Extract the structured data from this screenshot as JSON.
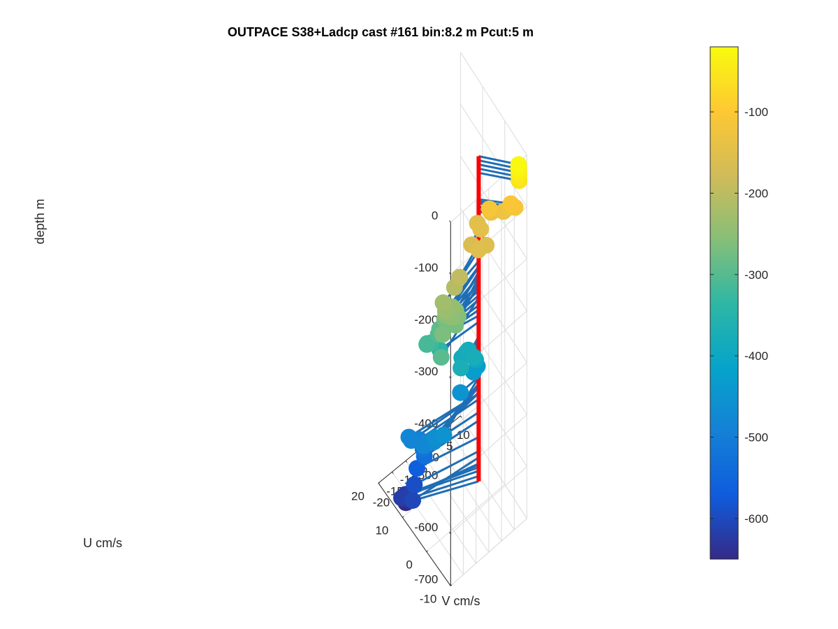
{
  "chart_data": {
    "type": "scatter",
    "title": "OUTPACE S38+Ladcp cast #161 bin:8.2 m  Pcut:5 m",
    "xlabel": "V cm/s",
    "ylabel": "U cm/s",
    "zlabel": "depth m",
    "xlim": [
      -20,
      10
    ],
    "ylim": [
      -10,
      20
    ],
    "zlim": [
      -700,
      0
    ],
    "x_ticks": [
      "-20",
      "-15",
      "-10",
      "-5",
      "0",
      "5",
      "10"
    ],
    "y_ticks": [
      "-10",
      "0",
      "10",
      "20"
    ],
    "z_ticks": [
      "0",
      "-100",
      "-200",
      "-300",
      "-400",
      "-500",
      "-600",
      "-700"
    ],
    "grid": true,
    "colorbar": {
      "range": [
        -650,
        -20
      ],
      "ticks": [
        "-100",
        "-200",
        "-300",
        "-400",
        "-500",
        "-600"
      ],
      "colormap": [
        "#352a87",
        "#0f5cdd",
        "#1481d6",
        "#06a4ca",
        "#2eb7a4",
        "#87bf77",
        "#d1bb59",
        "#fec832",
        "#f9fb0e"
      ]
    },
    "stick_color": "#1f6eb4",
    "marker_color_by": "depth",
    "origin_line_color": "#ff0000",
    "series": [
      {
        "points": [
          {
            "v": 8.5,
            "u": -8.0,
            "depth": -25
          },
          {
            "v": 8.5,
            "u": -8.0,
            "depth": -33
          },
          {
            "v": 8.6,
            "u": -8.0,
            "depth": -41
          },
          {
            "v": 8.6,
            "u": -8.0,
            "depth": -49
          },
          {
            "v": 8.7,
            "u": -8.0,
            "depth": -57
          },
          {
            "v": 7.2,
            "u": -6.0,
            "depth": -108
          },
          {
            "v": 8.0,
            "u": -7.0,
            "depth": -112
          },
          {
            "v": 1.5,
            "u": -3.0,
            "depth": -113
          },
          {
            "v": 7.5,
            "u": -5.0,
            "depth": -123
          },
          {
            "v": 6.0,
            "u": -4.0,
            "depth": -131
          },
          {
            "v": 3.0,
            "u": -2.0,
            "depth": -133
          },
          {
            "v": -1.0,
            "u": -2.0,
            "depth": -148
          },
          {
            "v": -0.5,
            "u": 0.0,
            "depth": -152
          },
          {
            "v": -4.5,
            "u": -5.0,
            "depth": -153
          },
          {
            "v": -1.5,
            "u": -5.0,
            "depth": -157
          },
          {
            "v": -4.5,
            "u": -2.0,
            "depth": -163
          },
          {
            "v": -10.0,
            "u": -3.0,
            "depth": -195
          },
          {
            "v": -12.0,
            "u": -3.0,
            "depth": -206
          },
          {
            "v": -15.5,
            "u": -2.0,
            "depth": -227
          },
          {
            "v": -15.5,
            "u": -3.0,
            "depth": -237
          },
          {
            "v": -13.0,
            "u": -3.0,
            "depth": -239
          },
          {
            "v": -14.0,
            "u": -4.0,
            "depth": -248
          },
          {
            "v": -11.5,
            "u": -3.0,
            "depth": -252
          },
          {
            "v": -14.5,
            "u": -2.0,
            "depth": -256
          },
          {
            "v": -11.5,
            "u": -4.0,
            "depth": -258
          },
          {
            "v": -12.5,
            "u": -4.0,
            "depth": -270
          },
          {
            "v": -17.5,
            "u": -4.0,
            "depth": -266
          },
          {
            "v": -14.0,
            "u": -1.0,
            "depth": -271
          },
          {
            "v": -12.0,
            "u": -2.0,
            "depth": -279
          },
          {
            "v": -13.0,
            "u": 0.0,
            "depth": -284
          },
          {
            "v": -15.0,
            "u": 0.0,
            "depth": -293
          },
          {
            "v": -15.5,
            "u": 0.0,
            "depth": -301
          },
          {
            "v": -19.0,
            "u": -5.0,
            "depth": -297
          },
          {
            "v": -19.0,
            "u": 1.0,
            "depth": -312
          },
          {
            "v": -17.0,
            "u": 1.5,
            "depth": -321
          },
          {
            "v": -17.0,
            "u": 3.0,
            "depth": -332
          },
          {
            "v": -14.0,
            "u": 1.0,
            "depth": -344
          },
          {
            "v": -9.5,
            "u": -3.0,
            "depth": -372
          },
          {
            "v": -4.0,
            "u": 0.0,
            "depth": -381
          },
          {
            "v": -4.0,
            "u": -2.5,
            "depth": -378
          },
          {
            "v": -6.5,
            "u": 0.0,
            "depth": -385
          },
          {
            "v": -4.0,
            "u": 1.0,
            "depth": -393
          },
          {
            "v": -2.5,
            "u": -1.5,
            "depth": -396
          },
          {
            "v": -0.5,
            "u": 0.0,
            "depth": -427
          },
          {
            "v": -2.0,
            "u": 0.0,
            "depth": -432
          },
          {
            "v": -7.0,
            "u": 0.0,
            "depth": -450
          },
          {
            "v": -18.0,
            "u": -5.0,
            "depth": -451
          },
          {
            "v": -19.5,
            "u": -3.0,
            "depth": -463
          },
          {
            "v": -20.0,
            "u": -3.0,
            "depth": -469
          },
          {
            "v": -20.5,
            "u": -1.0,
            "depth": -480
          },
          {
            "v": -22.0,
            "u": -1.0,
            "depth": -481
          },
          {
            "v": -24.0,
            "u": 2.0,
            "depth": -482
          },
          {
            "v": -24.0,
            "u": 3.0,
            "depth": -482
          },
          {
            "v": -21.0,
            "u": 2.0,
            "depth": -493
          },
          {
            "v": -19.5,
            "u": 2.0,
            "depth": -518
          },
          {
            "v": -19.0,
            "u": 2.0,
            "depth": -534
          },
          {
            "v": -20.0,
            "u": 4.0,
            "depth": -566
          },
          {
            "v": -21.0,
            "u": 4.0,
            "depth": -593
          },
          {
            "v": -23.0,
            "u": 2.5,
            "depth": -605
          },
          {
            "v": -22.0,
            "u": 5.0,
            "depth": -617
          },
          {
            "v": -24.0,
            "u": 6.0,
            "depth": -619
          },
          {
            "v": -22.0,
            "u": 6.5,
            "depth": -624
          },
          {
            "v": -21.5,
            "u": 7.0,
            "depth": -631
          },
          {
            "v": -21.0,
            "u": 7.0,
            "depth": -641
          },
          {
            "v": -21.0,
            "u": 7.5,
            "depth": -651
          }
        ]
      }
    ]
  }
}
